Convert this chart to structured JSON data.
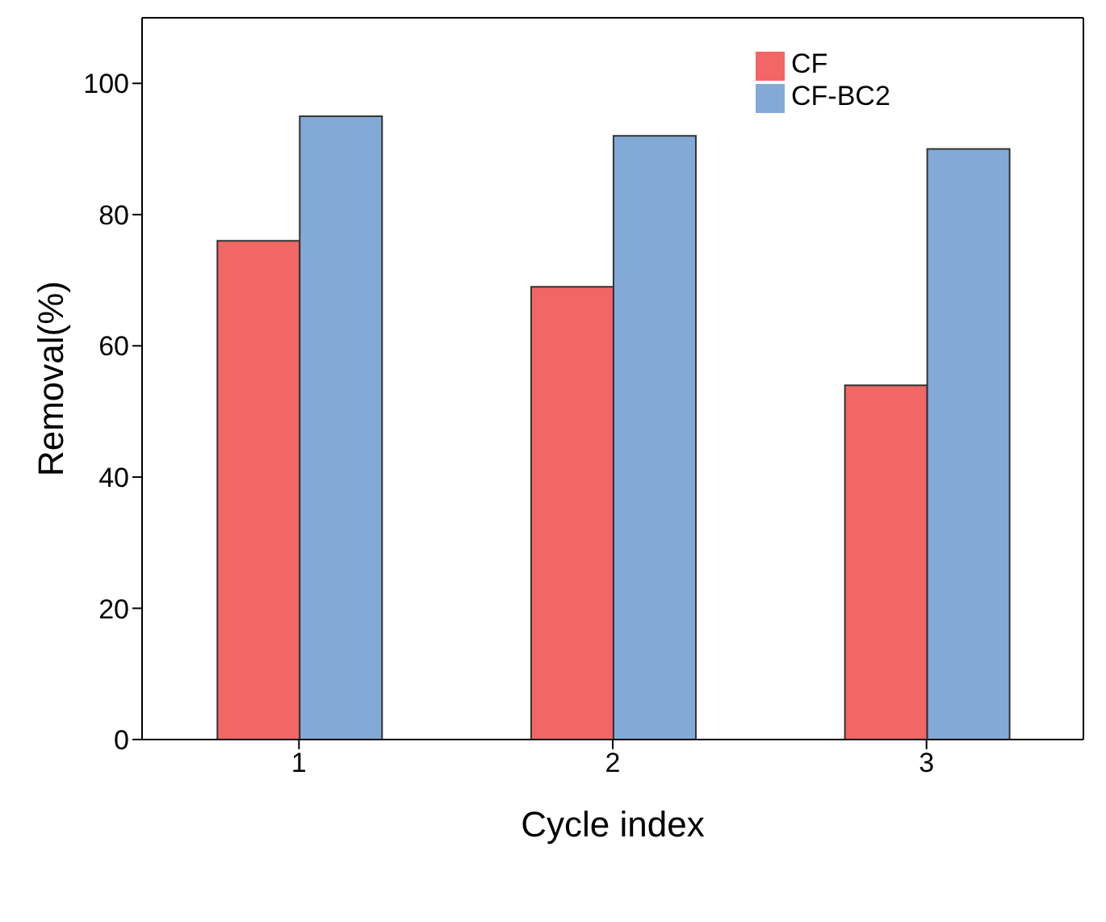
{
  "chart_data": {
    "type": "bar",
    "xlabel": "Cycle index",
    "ylabel": "Removal(%)",
    "categories": [
      "1",
      "2",
      "3"
    ],
    "series": [
      {
        "name": "CF",
        "color": "#f26666",
        "values": [
          76,
          69,
          54
        ]
      },
      {
        "name": "CF-BC2",
        "color": "#83aad6",
        "values": [
          95,
          92,
          90
        ]
      }
    ],
    "ylim": [
      0,
      110
    ],
    "yticks": [
      0,
      20,
      40,
      60,
      80,
      100
    ],
    "grid": false,
    "legend": "top right"
  }
}
